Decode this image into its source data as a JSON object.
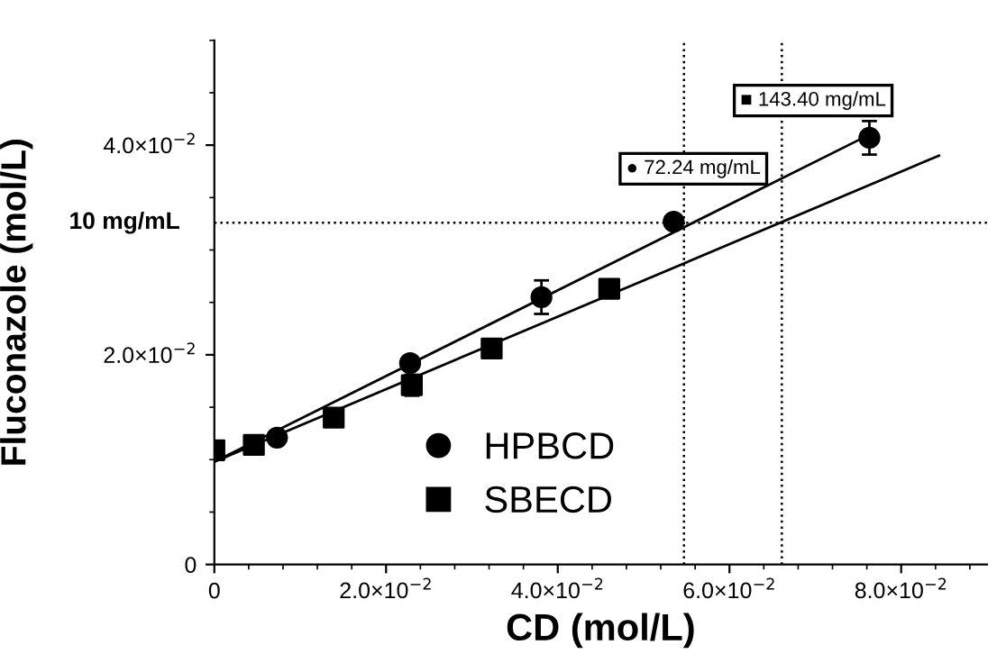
{
  "chart_data": {
    "type": "scatter",
    "xlabel": "CD (mol/L)",
    "ylabel": "Fluconazole (mol/L)",
    "xlim": [
      0,
      0.09
    ],
    "ylim": [
      0,
      0.05
    ],
    "xticks": [
      0,
      {
        "value": 0.02,
        "label": "2.0×10$^{−2}$"
      },
      {
        "value": 0.04,
        "label": "4.0×10$^{−2}$"
      },
      {
        "value": 0.06,
        "label": "6.0×10$^{−2}$"
      },
      {
        "value": 0.08,
        "label": "8.0×10$^{−2}$"
      }
    ],
    "yticks": [
      0,
      {
        "value": 0.02,
        "label": "2.0×10$^{−2}$"
      },
      {
        "value": 0.04,
        "label": "4.0×10$^{−2}$"
      }
    ],
    "series": [
      {
        "name": "HPBCD",
        "marker": "circle",
        "color": "#000000",
        "x": [
          0.0073,
          0.0228,
          0.0381,
          0.0535,
          0.0763
        ],
        "values": [
          0.0121,
          0.0192,
          0.0255,
          0.0327,
          0.0407
        ],
        "errors": [
          null,
          null,
          0.0016,
          null,
          0.0016
        ]
      },
      {
        "name": "SBECD",
        "marker": "square",
        "color": "#000000",
        "x": [
          0,
          0.0046,
          0.0139,
          0.023,
          0.0323,
          0.046
        ],
        "values": [
          0.0109,
          0.0114,
          0.014,
          0.0171,
          0.0206,
          0.0263
        ],
        "errors": [
          null,
          null,
          null,
          0.001,
          null,
          null
        ]
      },
      {
        "type": "line",
        "color": "#000000",
        "x": [
          0,
          0.0763
        ],
        "values": [
          0.0098,
          0.041
        ]
      },
      {
        "type": "line",
        "color": "#000000",
        "x": [
          0,
          0.0844
        ],
        "values": [
          0.0098,
          0.039
        ]
      }
    ],
    "ref_lines": [
      {
        "axis": "y",
        "value": 0.0326,
        "label": "10 mg/mL",
        "line_style": "dotted"
      },
      {
        "axis": "x",
        "value": 0.0547,
        "line_style": "dotted"
      },
      {
        "axis": "x",
        "value": 0.0661,
        "line_style": "dotted"
      }
    ],
    "annotations": [
      "● 72.24 mg/mL",
      "■ 143.40 mg/mL"
    ],
    "legend": "bottom",
    "grid": false
  }
}
